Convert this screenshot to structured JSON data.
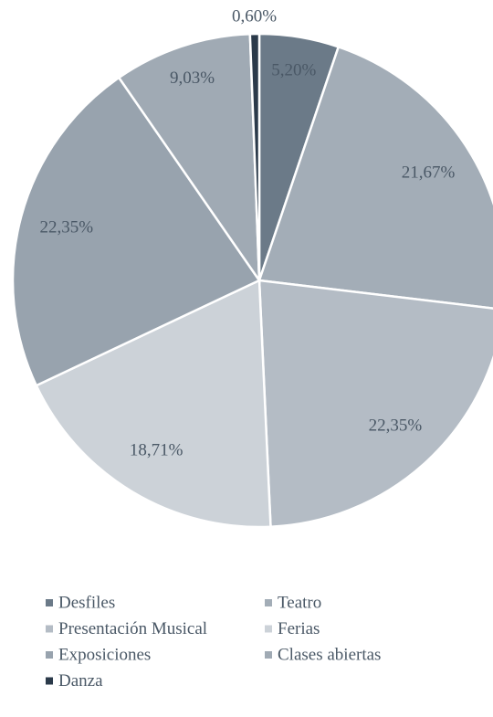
{
  "chart_data": {
    "type": "pie",
    "categories": [
      "Desfiles",
      "Teatro",
      "Presentación Musical",
      "Ferias",
      "Exposiciones",
      "Clases abiertas",
      "Danza"
    ],
    "values": [
      5.2,
      21.67,
      22.35,
      18.71,
      22.35,
      9.03,
      0.6
    ],
    "value_labels": [
      "5,20%",
      "21,67%",
      "22,35%",
      "18,71%",
      "22,35%",
      "9,03%",
      "0,60%"
    ],
    "colors": [
      "#6b7a88",
      "#a3adb7",
      "#b4bcc5",
      "#ccd2d8",
      "#98a3ae",
      "#a0aab4",
      "#2b3a4a"
    ]
  }
}
